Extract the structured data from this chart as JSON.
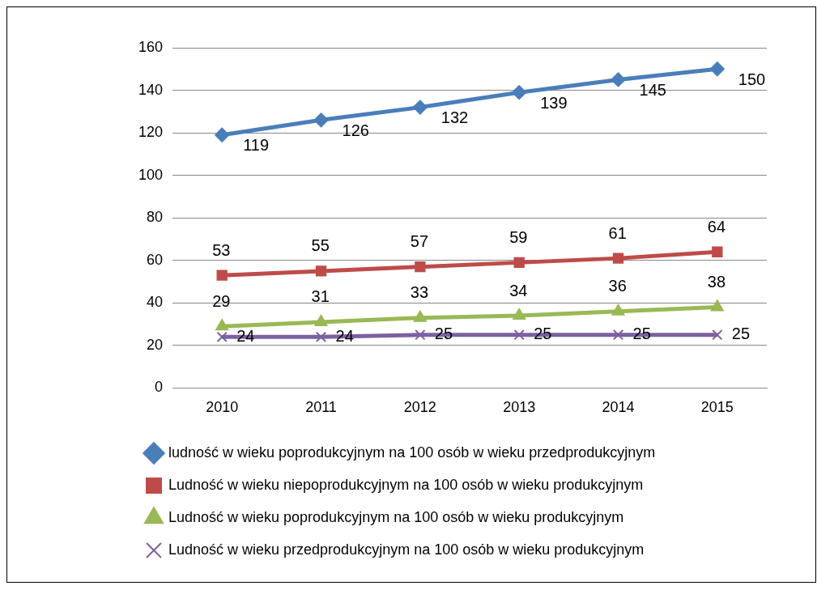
{
  "chart_data": {
    "type": "line",
    "categories": [
      "2010",
      "2011",
      "2012",
      "2013",
      "2014",
      "2015"
    ],
    "series": [
      {
        "name": "ludność w wieku poprodukcyjnym na 100 osób w wieku przedprodukcyjnym",
        "color": "#4a7ebb",
        "marker": "diamond",
        "values": [
          119,
          126,
          132,
          139,
          145,
          150
        ]
      },
      {
        "name": "Ludność w wieku niepoprodukcyjnym na 100 osób w wieku produkcyjnym",
        "color": "#be4b48",
        "marker": "square",
        "values": [
          53,
          55,
          57,
          59,
          61,
          64
        ]
      },
      {
        "name": "Ludność w wieku poprodukcyjnym na 100 osób w wieku produkcyjnym",
        "color": "#98b954",
        "marker": "triangle",
        "values": [
          29,
          31,
          33,
          34,
          36,
          38
        ]
      },
      {
        "name": "Ludność w wieku przedprodukcyjnym na 100 osób w wieku produkcyjnym",
        "color": "#7d60a0",
        "marker": "cross",
        "values": [
          24,
          24,
          25,
          25,
          25,
          25
        ]
      }
    ],
    "ylim": [
      0,
      160
    ],
    "yticks": [
      0,
      20,
      40,
      60,
      80,
      100,
      120,
      140,
      160
    ],
    "grid": "y",
    "legend": "bottom",
    "data_labels": true
  }
}
